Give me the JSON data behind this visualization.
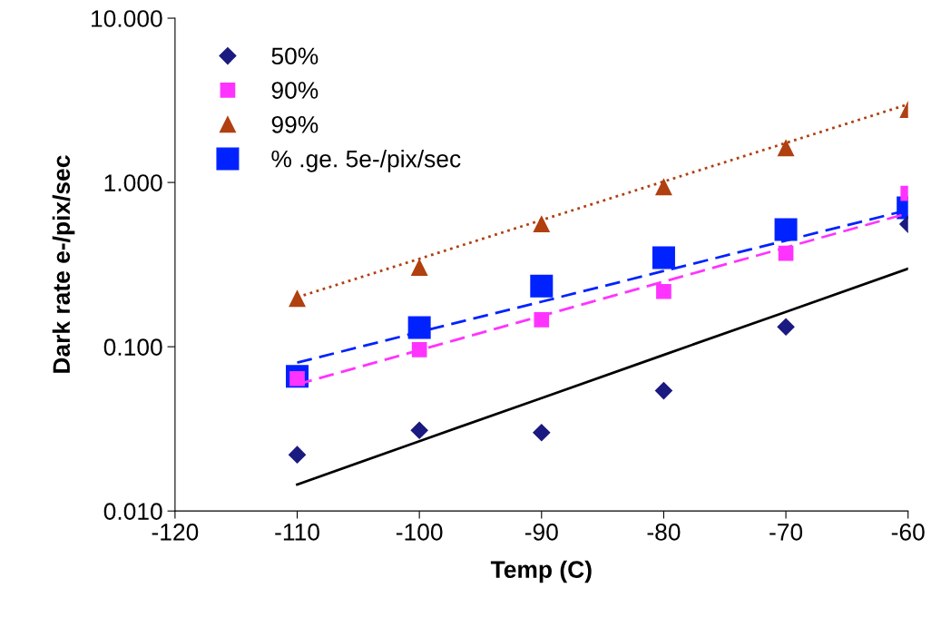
{
  "chart_data": {
    "type": "scatter",
    "xlabel": "Temp (C)",
    "ylabel": "Dark rate e-/pix/sec",
    "log": "y",
    "xlim": [
      -120,
      -60
    ],
    "xticks": [
      -120,
      -110,
      -100,
      -90,
      -80,
      -70,
      -60
    ],
    "ylim": [
      0.01,
      10
    ],
    "yticks": [
      {
        "value": 0.01,
        "label": "0.010"
      },
      {
        "value": 0.1,
        "label": "0.100"
      },
      {
        "value": 1,
        "label": "1.000"
      },
      {
        "value": 10,
        "label": "10.000"
      }
    ],
    "grid": false,
    "legend": "top left",
    "x": [
      -110,
      -100,
      -90,
      -80,
      -70,
      -60
    ],
    "series": [
      {
        "name": "50%",
        "color": "#1a1a80",
        "marker": "diamond",
        "values": [
          0.022,
          0.031,
          0.03,
          0.054,
          0.132,
          0.557
        ]
      },
      {
        "name": "90%",
        "color": "#ff33ff",
        "marker": "square",
        "values": [
          0.064,
          0.096,
          0.146,
          0.217,
          0.371,
          0.858
        ]
      },
      {
        "name": "99%",
        "color": "#b04010",
        "marker": "triangle",
        "values": [
          0.196,
          0.303,
          0.557,
          0.938,
          1.62,
          2.77
        ]
      },
      {
        "name": "% .ge. 5e-/pix/sec",
        "color": "#0022ff",
        "marker": "square",
        "values": [
          0.066,
          0.131,
          0.234,
          0.348,
          0.516,
          0.7
        ]
      },
      {
        "type": "line",
        "color": "#000000",
        "line_style": "solid",
        "values": [
          0.0145,
          0.0266,
          0.0487,
          0.0892,
          0.163,
          0.299
        ]
      },
      {
        "type": "line",
        "color": "#ff33ff",
        "line_style": "dashed",
        "values": [
          0.059,
          0.0953,
          0.154,
          0.249,
          0.402,
          0.65
        ]
      },
      {
        "type": "line",
        "color": "#b04010",
        "line_style": "dotted",
        "values": [
          0.2,
          0.343,
          0.59,
          1.013,
          1.74,
          2.99
        ]
      },
      {
        "type": "line",
        "color": "#0022ff",
        "line_style": "dashed",
        "values": [
          0.08,
          0.123,
          0.188,
          0.289,
          0.443,
          0.68
        ]
      }
    ]
  }
}
